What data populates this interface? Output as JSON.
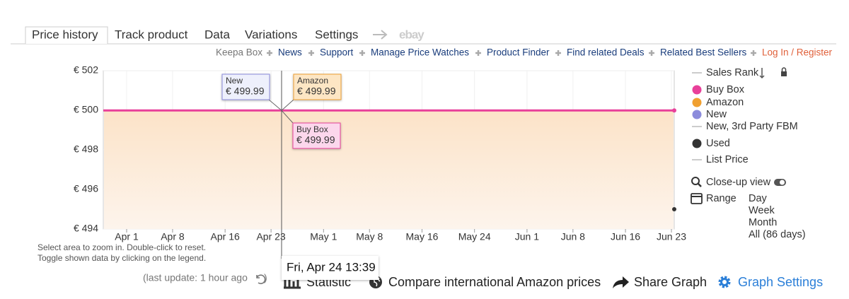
{
  "tabs": [
    "Price history",
    "Track product",
    "Data",
    "Variations",
    "Settings",
    "ebay"
  ],
  "links": [
    "Keepa Box",
    "News",
    "Support",
    "Manage Price Watches",
    "Product Finder",
    "Find related Deals",
    "Related Best Sellers",
    "Log In / Register"
  ],
  "chart_data": {
    "type": "line",
    "ylim": [
      494,
      502
    ],
    "yticks": [
      {
        "value": 494,
        "label": "€ 494"
      },
      {
        "value": 496,
        "label": "€ 496"
      },
      {
        "value": 498,
        "label": "€ 498"
      },
      {
        "value": 500,
        "label": "€ 500"
      },
      {
        "value": 502,
        "label": "€ 502"
      }
    ],
    "xticks": [
      "Apr 1",
      "Apr 8",
      "Apr 16",
      "Apr 23",
      "May 1",
      "May 8",
      "May 16",
      "May 24",
      "Jun 1",
      "Jun 8",
      "Jun 16",
      "Jun 23"
    ],
    "grid": true,
    "series": [
      {
        "name": "Buy Box",
        "color": "#e8409a",
        "values": [
          499.99
        ],
        "value_labels": [
          "€ 499.99"
        ]
      },
      {
        "name": "Amazon",
        "color": "#f0a030",
        "values": [
          499.99
        ],
        "value_labels": [
          "€ 499.99"
        ]
      },
      {
        "name": "New",
        "color": "#8c8cdc",
        "values": [
          499.99
        ],
        "value_labels": [
          "€ 499.99"
        ]
      },
      {
        "name": "Used",
        "color": "#333333",
        "values": [
          495
        ]
      }
    ],
    "inactive_legend": [
      "Sales Rank",
      "New, 3rd Party FBM",
      "List Price"
    ],
    "crosshair_label": "Fri, Apr 24 13:39",
    "hints": [
      "Select area to zoom in. Double-click to reset.",
      "Toggle shown data by clicking on the legend."
    ]
  },
  "controls": {
    "close_up": "Close-up view",
    "range": "Range",
    "range_options": [
      "Day",
      "Week",
      "Month",
      "All (86 days)"
    ]
  },
  "footer": {
    "update": "(last update: 1 hour ago",
    "update_close": ")",
    "actions": [
      "Statistic",
      "Compare international Amazon prices",
      "Share Graph",
      "Graph Settings"
    ]
  }
}
